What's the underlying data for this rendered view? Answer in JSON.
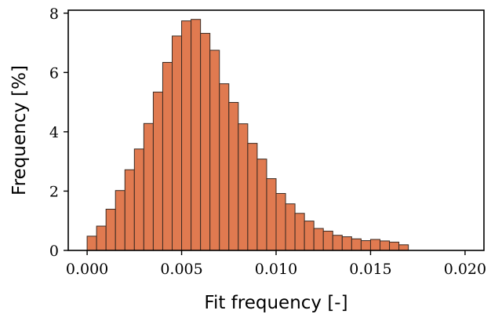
{
  "chart_data": {
    "type": "bar",
    "title": "",
    "xlabel": "Fit frequency [-]",
    "ylabel": "Frequency [%]",
    "xlim": [
      -0.001,
      0.021
    ],
    "ylim": [
      0,
      8.1
    ],
    "bin_width": 0.0005,
    "bin_start": 0.0,
    "x_ticks": [
      "0.000",
      "0.005",
      "0.010",
      "0.015",
      "0.020"
    ],
    "x_tick_values": [
      0.0,
      0.005,
      0.01,
      0.015,
      0.02
    ],
    "y_ticks": [
      "0",
      "2",
      "4",
      "6",
      "8"
    ],
    "y_tick_values": [
      0,
      2,
      4,
      6,
      8
    ],
    "grid": false,
    "color": "#E07A50",
    "values": [
      0.48,
      0.82,
      1.39,
      2.02,
      2.72,
      3.42,
      4.28,
      5.34,
      6.34,
      7.23,
      7.74,
      7.79,
      7.32,
      6.75,
      5.62,
      4.99,
      4.27,
      3.61,
      3.08,
      2.42,
      1.92,
      1.57,
      1.25,
      0.99,
      0.74,
      0.65,
      0.51,
      0.46,
      0.39,
      0.33,
      0.37,
      0.32,
      0.28,
      0.19
    ]
  }
}
